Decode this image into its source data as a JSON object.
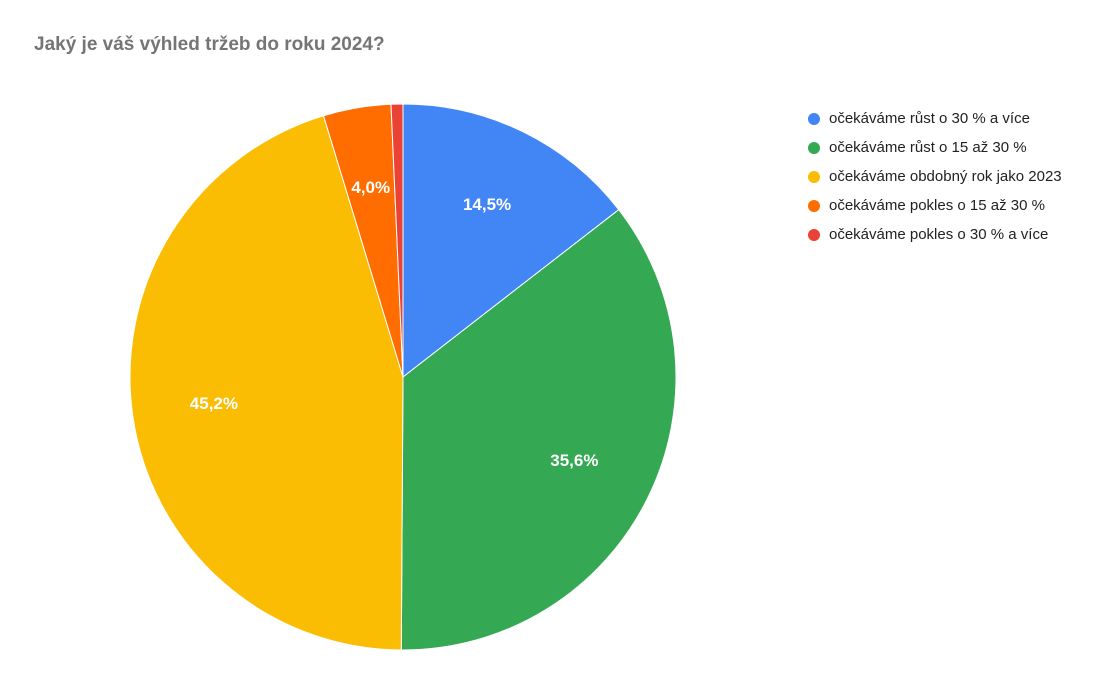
{
  "chart_data": {
    "type": "pie",
    "title": "Jaký je váš výhled tržeb do roku 2024?",
    "legend_position": "right",
    "slices": [
      {
        "label": "očekáváme růst o 30 % a více",
        "value": 14.5,
        "display": "14,5%",
        "color": "#4285f4"
      },
      {
        "label": "očekáváme růst o 15 až 30 %",
        "value": 35.6,
        "display": "35,6%",
        "color": "#34a853"
      },
      {
        "label": "očekáváme obdobný rok jako 2023",
        "value": 45.2,
        "display": "45,2%",
        "color": "#fbbc04"
      },
      {
        "label": "očekáváme pokles o 15 až 30 %",
        "value": 4.0,
        "display": "4,0%",
        "color": "#ff6d01"
      },
      {
        "label": "očekáváme pokles o 30 % a více",
        "value": 0.7,
        "display": "",
        "color": "#ea4335"
      }
    ]
  }
}
